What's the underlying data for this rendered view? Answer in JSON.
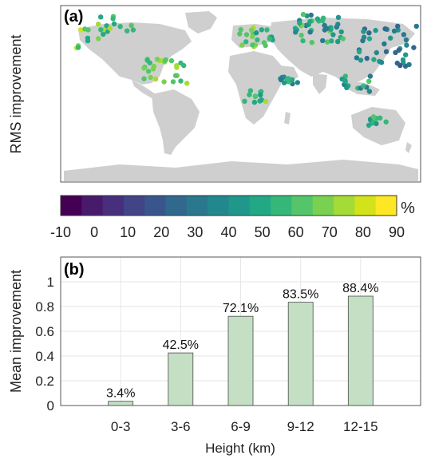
{
  "panel_a": {
    "label": "(a)",
    "ylabel": "RMS improvement",
    "colorbar_unit": "%",
    "colorbar_ticks": [
      "-10",
      "0",
      "10",
      "20",
      "30",
      "40",
      "50",
      "60",
      "70",
      "80",
      "90"
    ],
    "colormap": [
      "#440154",
      "#481a6c",
      "#472f7d",
      "#414487",
      "#39568c",
      "#31688e",
      "#2a788e",
      "#23888e",
      "#1f988b",
      "#22a884",
      "#35b779",
      "#54c568",
      "#7ad151",
      "#a5db36",
      "#d2e21b",
      "#fde725"
    ],
    "land_color": "#cfcfcf"
  },
  "panel_b": {
    "label": "(b)",
    "xlabel": "Height (km)",
    "ylabel": "Mean improvement",
    "bar_color": "#c4dfc4"
  },
  "chart_data": [
    {
      "type": "scatter",
      "title": "",
      "description_label": "RMS improvement",
      "color_scale_range": [
        -10,
        90
      ],
      "color_unit": "%"
    },
    {
      "type": "bar",
      "categories": [
        "0-3",
        "3-6",
        "6-9",
        "9-12",
        "12-15"
      ],
      "values": [
        0.034,
        0.425,
        0.721,
        0.835,
        0.884
      ],
      "data_labels": [
        "3.4%",
        "42.5%",
        "72.1%",
        "83.5%",
        "88.4%"
      ],
      "xlabel": "Height (km)",
      "ylabel": "Mean improvement",
      "ylim": [
        0,
        1.2
      ],
      "yticks": [
        "0",
        "0.2",
        "0.4",
        "0.6",
        "0.8",
        "1"
      ],
      "grid": true
    }
  ]
}
